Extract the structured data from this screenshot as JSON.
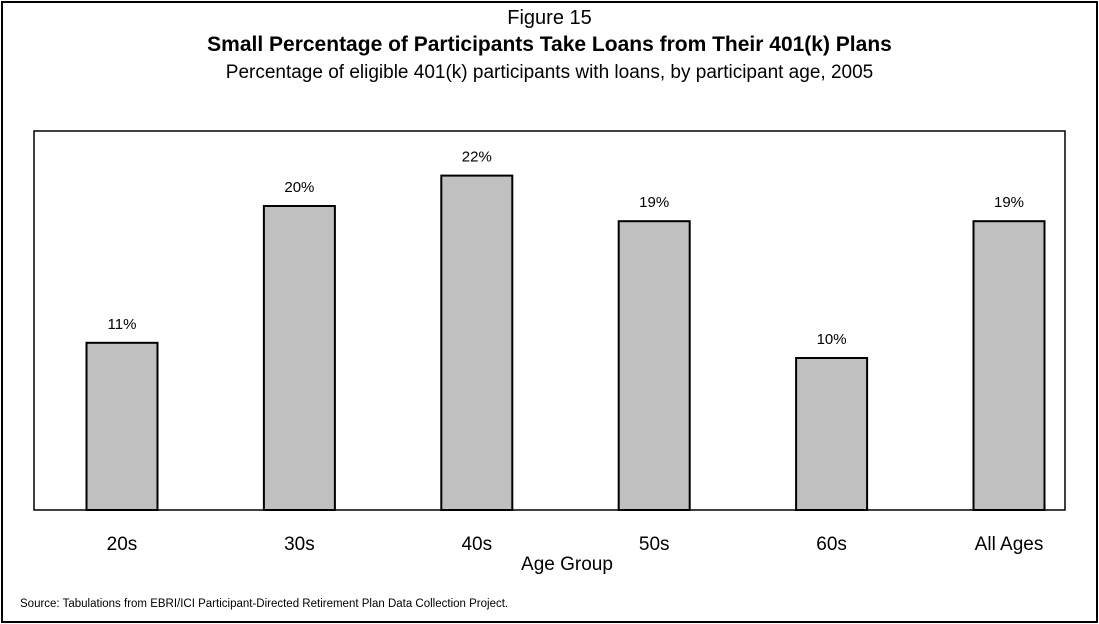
{
  "figure_label": "Figure 15",
  "source_note": "Source: Tabulations from EBRI/ICI Participant-Directed Retirement Plan Data Collection Project.",
  "colors": {
    "bar_fill": "#c0c0c0",
    "bar_stroke": "#000000",
    "frame": "#000000"
  },
  "chart_data": {
    "type": "bar",
    "title": "Small Percentage of Participants Take Loans from Their 401(k) Plans",
    "subtitle": "Percentage of eligible 401(k) participants with loans, by participant age, 2005",
    "xlabel": "Age Group",
    "ylabel": "",
    "categories": [
      "20s",
      "30s",
      "40s",
      "50s",
      "60s",
      "All Ages"
    ],
    "values": [
      11,
      20,
      22,
      19,
      10,
      19
    ],
    "data_labels": [
      "11%",
      "20%",
      "22%",
      "19%",
      "10%",
      "19%"
    ],
    "ylim": [
      0,
      24
    ],
    "grid": false,
    "legend": false
  }
}
